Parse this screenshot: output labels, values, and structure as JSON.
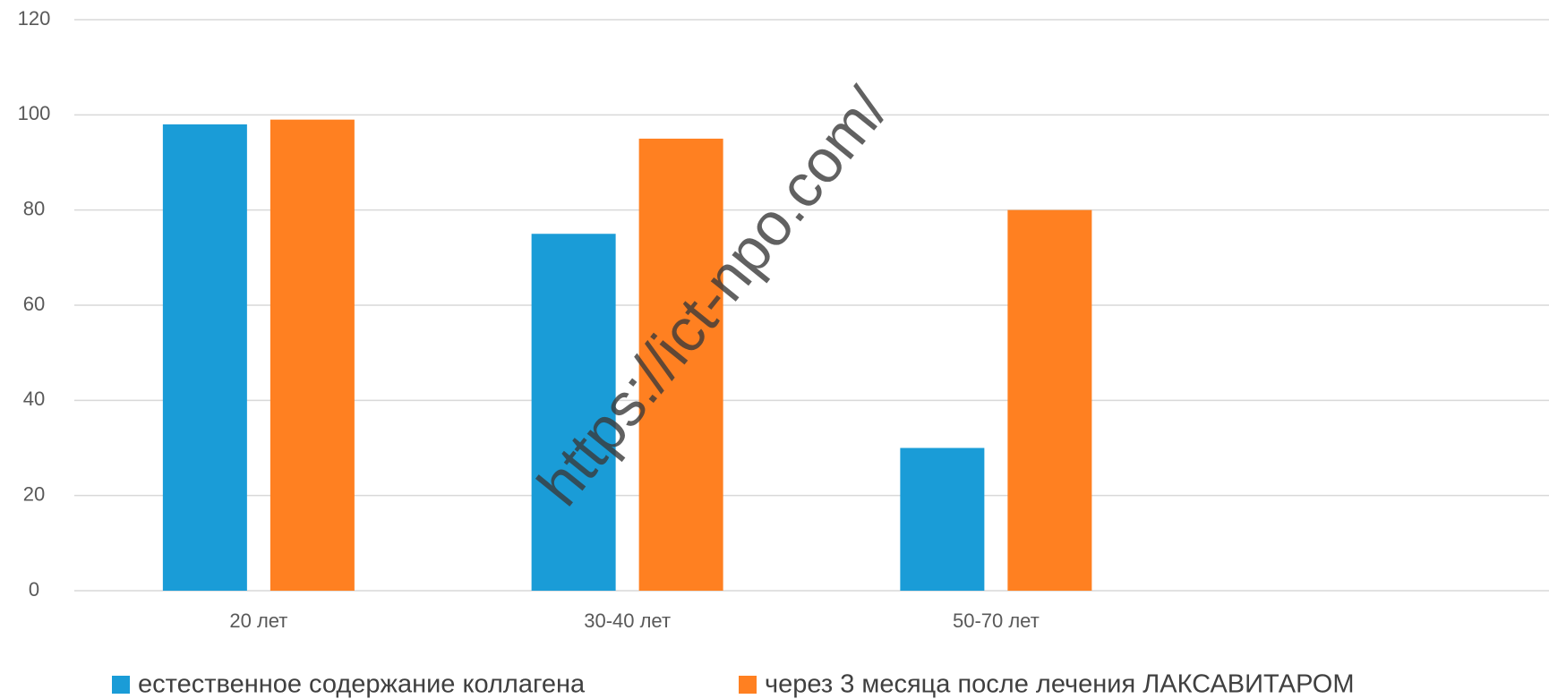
{
  "chart_data": {
    "type": "bar",
    "categories": [
      "20 лет",
      "30-40 лет",
      "50-70 лет",
      null
    ],
    "series": [
      {
        "name": "естественное содержание коллагена",
        "color": "#1a9cd7",
        "values": [
          98,
          75,
          30,
          null
        ]
      },
      {
        "name": "через 3 месяца после лечения ЛАКСАВИТАРОМ",
        "color": "#ff8021",
        "values": [
          99,
          95,
          80,
          null
        ]
      }
    ],
    "ylim": [
      0,
      120
    ],
    "yticks": [
      0,
      20,
      40,
      60,
      80,
      100,
      120
    ],
    "grid": true,
    "legend": "bottom",
    "watermark": "https://ict-npo.com/"
  }
}
